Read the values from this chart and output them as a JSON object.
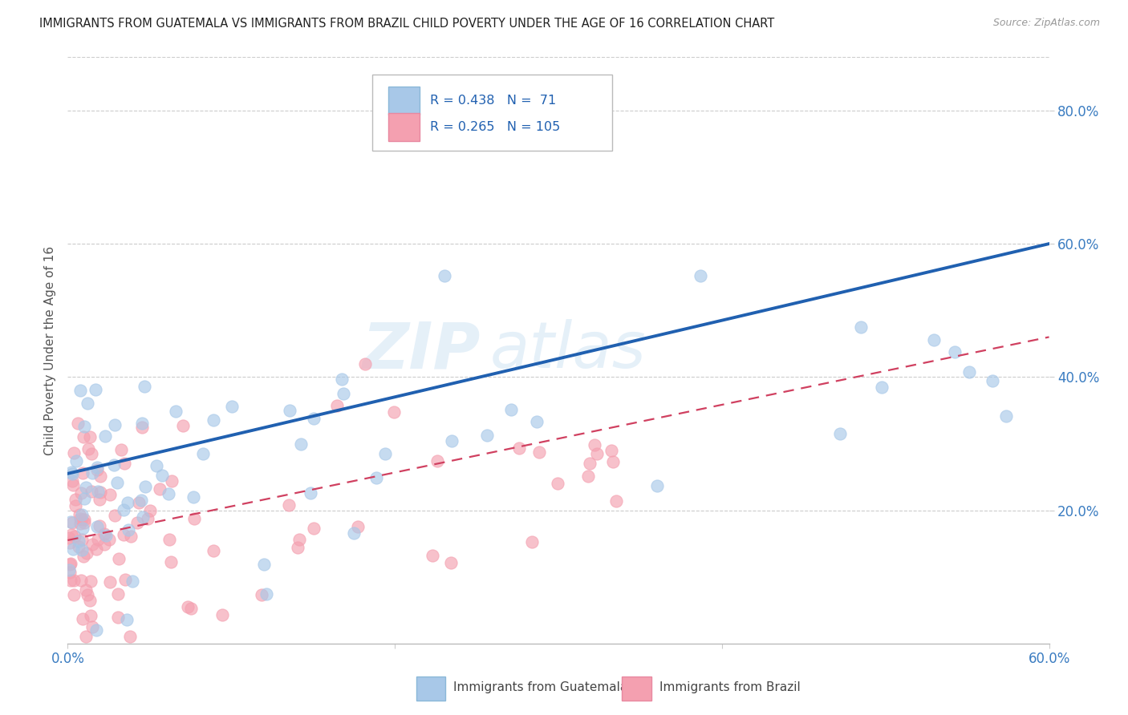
{
  "title": "IMMIGRANTS FROM GUATEMALA VS IMMIGRANTS FROM BRAZIL CHILD POVERTY UNDER THE AGE OF 16 CORRELATION CHART",
  "source": "Source: ZipAtlas.com",
  "ylabel": "Child Poverty Under the Age of 16",
  "xlim": [
    0.0,
    0.6
  ],
  "ylim": [
    0.0,
    0.88
  ],
  "xtick_labels": [
    "0.0%",
    "",
    "",
    "60.0%"
  ],
  "xtick_vals": [
    0.0,
    0.2,
    0.4,
    0.6
  ],
  "ytick_labels": [
    "20.0%",
    "40.0%",
    "60.0%",
    "80.0%"
  ],
  "ytick_vals": [
    0.2,
    0.4,
    0.6,
    0.8
  ],
  "guatemala_R": 0.438,
  "guatemala_N": 71,
  "brazil_R": 0.265,
  "brazil_N": 105,
  "guatemala_color": "#a8c8e8",
  "brazil_color": "#f4a0b0",
  "guatemala_line_color": "#2060b0",
  "brazil_line_color": "#d04060",
  "legend_label_guatemala": "Immigrants from Guatemala",
  "legend_label_brazil": "Immigrants from Brazil",
  "guatemala_line_x0": 0.0,
  "guatemala_line_y0": 0.255,
  "guatemala_line_x1": 0.6,
  "guatemala_line_y1": 0.6,
  "brazil_line_x0": 0.0,
  "brazil_line_y0": 0.155,
  "brazil_line_x1": 0.6,
  "brazil_line_y1": 0.46
}
